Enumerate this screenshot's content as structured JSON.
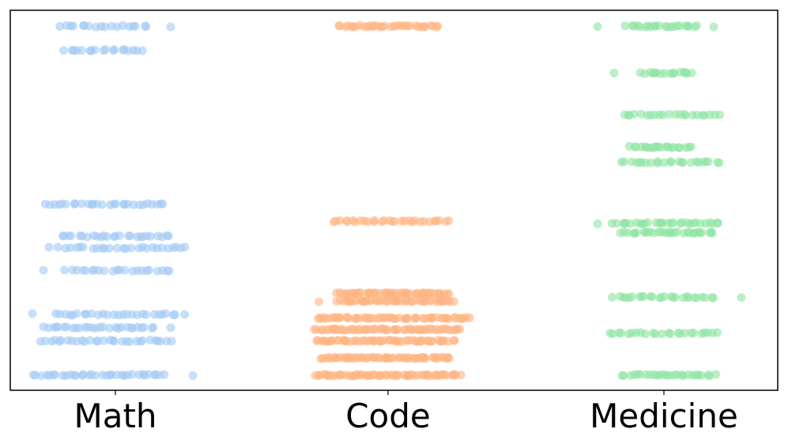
{
  "chart_data": {
    "type": "scatter",
    "title": "",
    "xlabel": "",
    "ylabel": "",
    "categories": [
      "Math",
      "Code",
      "Medicine"
    ],
    "grid": false,
    "legend": "none",
    "series": [
      {
        "category": "Math",
        "color": "#a1c9f4",
        "rows": [
          {
            "y": 0.04,
            "x_min": -0.3,
            "x_max": 0.18,
            "n": 34,
            "outliers": [
              0.28
            ]
          },
          {
            "y": 0.13,
            "x_min": -0.27,
            "x_max": 0.2,
            "n": 30,
            "outliers": []
          },
          {
            "y": 0.165,
            "x_min": -0.26,
            "x_max": 0.14,
            "n": 28,
            "outliers": [
              0.2
            ]
          },
          {
            "y": 0.2,
            "x_min": -0.22,
            "x_max": 0.22,
            "n": 26,
            "outliers": [
              -0.3,
              0.25
            ]
          },
          {
            "y": 0.315,
            "x_min": -0.18,
            "x_max": 0.2,
            "n": 22,
            "outliers": [
              -0.26
            ]
          },
          {
            "y": 0.375,
            "x_min": -0.2,
            "x_max": 0.26,
            "n": 26,
            "outliers": [
              -0.24
            ]
          },
          {
            "y": 0.405,
            "x_min": -0.2,
            "x_max": 0.2,
            "n": 26,
            "outliers": []
          },
          {
            "y": 0.49,
            "x_min": -0.25,
            "x_max": 0.18,
            "n": 28,
            "outliers": []
          },
          {
            "y": 0.895,
            "x_min": -0.18,
            "x_max": 0.1,
            "n": 18,
            "outliers": []
          },
          {
            "y": 0.958,
            "x_min": -0.2,
            "x_max": 0.12,
            "n": 18,
            "outliers": [
              0.2
            ]
          }
        ]
      },
      {
        "category": "Code",
        "color": "#ffb482",
        "rows": [
          {
            "y": 0.04,
            "x_min": -0.26,
            "x_max": 0.26,
            "n": 60,
            "outliers": []
          },
          {
            "y": 0.085,
            "x_min": -0.24,
            "x_max": 0.22,
            "n": 56,
            "outliers": []
          },
          {
            "y": 0.13,
            "x_min": -0.26,
            "x_max": 0.24,
            "n": 56,
            "outliers": []
          },
          {
            "y": 0.16,
            "x_min": -0.26,
            "x_max": 0.26,
            "n": 60,
            "outliers": []
          },
          {
            "y": 0.19,
            "x_min": -0.26,
            "x_max": 0.3,
            "n": 60,
            "outliers": []
          },
          {
            "y": 0.235,
            "x_min": -0.18,
            "x_max": 0.24,
            "n": 52,
            "outliers": [
              -0.25
            ]
          },
          {
            "y": 0.255,
            "x_min": -0.18,
            "x_max": 0.22,
            "n": 52,
            "outliers": []
          },
          {
            "y": 0.445,
            "x_min": -0.2,
            "x_max": 0.22,
            "n": 30,
            "outliers": []
          },
          {
            "y": 0.958,
            "x_min": -0.18,
            "x_max": 0.18,
            "n": 34,
            "outliers": []
          }
        ]
      },
      {
        "category": "Medicine",
        "color": "#8de5a1",
        "rows": [
          {
            "y": 0.04,
            "x_min": -0.15,
            "x_max": 0.18,
            "n": 26,
            "outliers": []
          },
          {
            "y": 0.15,
            "x_min": -0.2,
            "x_max": 0.2,
            "n": 24,
            "outliers": []
          },
          {
            "y": 0.245,
            "x_min": -0.18,
            "x_max": 0.18,
            "n": 26,
            "outliers": [
              0.28
            ]
          },
          {
            "y": 0.415,
            "x_min": -0.15,
            "x_max": 0.18,
            "n": 30,
            "outliers": []
          },
          {
            "y": 0.44,
            "x_min": -0.18,
            "x_max": 0.2,
            "n": 30,
            "outliers": [
              -0.24
            ]
          },
          {
            "y": 0.6,
            "x_min": -0.15,
            "x_max": 0.2,
            "n": 24,
            "outliers": []
          },
          {
            "y": 0.64,
            "x_min": -0.12,
            "x_max": 0.1,
            "n": 20,
            "outliers": []
          },
          {
            "y": 0.725,
            "x_min": -0.15,
            "x_max": 0.2,
            "n": 22,
            "outliers": []
          },
          {
            "y": 0.835,
            "x_min": -0.08,
            "x_max": 0.1,
            "n": 16,
            "outliers": [
              -0.18
            ]
          },
          {
            "y": 0.958,
            "x_min": -0.13,
            "x_max": 0.12,
            "n": 22,
            "outliers": [
              -0.24,
              0.18
            ]
          }
        ]
      }
    ]
  }
}
